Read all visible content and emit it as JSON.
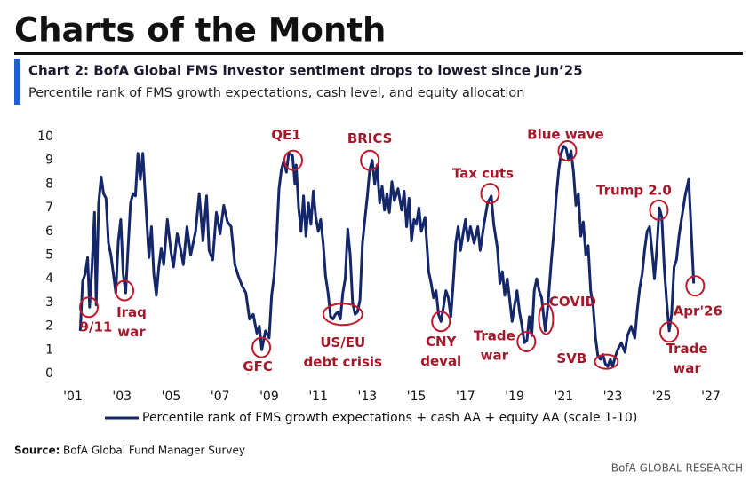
{
  "header": {
    "title": "Charts of the Month"
  },
  "chart_data": {
    "type": "line",
    "title": "Chart 2: BofA Global FMS investor sentiment drops to lowest since Jun’25",
    "subtitle": "Percentile rank of FMS growth expectations, cash level, and equity allocation",
    "x": [
      2001.3,
      2001.4,
      2001.5,
      2001.6,
      2001.68,
      2001.78,
      2001.88,
      2001.95,
      2002.05,
      2002.15,
      2002.25,
      2002.35,
      2002.45,
      2002.55,
      2002.65,
      2002.75,
      2002.85,
      2002.95,
      2003.05,
      2003.15,
      2003.25,
      2003.35,
      2003.45,
      2003.55,
      2003.65,
      2003.75,
      2003.85,
      2003.95,
      2004.1,
      2004.2,
      2004.3,
      2004.4,
      2004.5,
      2004.6,
      2004.7,
      2004.85,
      2005.0,
      2005.1,
      2005.25,
      2005.4,
      2005.5,
      2005.65,
      2005.8,
      2006.0,
      2006.15,
      2006.3,
      2006.45,
      2006.55,
      2006.7,
      2006.85,
      2007.0,
      2007.15,
      2007.3,
      2007.45,
      2007.6,
      2007.75,
      2007.9,
      2008.05,
      2008.2,
      2008.35,
      2008.5,
      2008.6,
      2008.7,
      2008.85,
      2009.0,
      2009.1,
      2009.2,
      2009.3,
      2009.4,
      2009.5,
      2009.6,
      2009.7,
      2009.8,
      2009.95,
      2010.05,
      2010.1,
      2010.2,
      2010.3,
      2010.4,
      2010.5,
      2010.6,
      2010.7,
      2010.8,
      2010.9,
      2011.0,
      2011.1,
      2011.2,
      2011.3,
      2011.4,
      2011.5,
      2011.6,
      2011.7,
      2011.8,
      2011.9,
      2012.0,
      2012.1,
      2012.2,
      2012.3,
      2012.4,
      2012.5,
      2012.6,
      2012.7,
      2012.8,
      2012.9,
      2013.0,
      2013.1,
      2013.2,
      2013.3,
      2013.4,
      2013.5,
      2013.6,
      2013.7,
      2013.8,
      2013.9,
      2014.0,
      2014.1,
      2014.25,
      2014.4,
      2014.5,
      2014.6,
      2014.7,
      2014.8,
      2014.9,
      2015.0,
      2015.1,
      2015.2,
      2015.35,
      2015.5,
      2015.6,
      2015.7,
      2015.8,
      2015.9,
      2016.0,
      2016.1,
      2016.2,
      2016.3,
      2016.4,
      2016.5,
      2016.6,
      2016.7,
      2016.8,
      2016.9,
      2017.0,
      2017.1,
      2017.2,
      2017.35,
      2017.5,
      2017.6,
      2017.75,
      2017.9,
      2018.05,
      2018.15,
      2018.3,
      2018.4,
      2018.5,
      2018.6,
      2018.7,
      2018.8,
      2018.9,
      2019.0,
      2019.1,
      2019.2,
      2019.3,
      2019.4,
      2019.5,
      2019.6,
      2019.7,
      2019.8,
      2019.9,
      2020.0,
      2020.1,
      2020.25,
      2020.35,
      2020.5,
      2020.6,
      2020.7,
      2020.8,
      2020.9,
      2021.0,
      2021.1,
      2021.2,
      2021.3,
      2021.4,
      2021.5,
      2021.6,
      2021.7,
      2021.8,
      2021.9,
      2022.0,
      2022.1,
      2022.2,
      2022.3,
      2022.4,
      2022.5,
      2022.6,
      2022.7,
      2022.8,
      2022.9,
      2023.0,
      2023.1,
      2023.2,
      2023.35,
      2023.5,
      2023.6,
      2023.75,
      2023.9,
      2024.0,
      2024.1,
      2024.2,
      2024.3,
      2024.4,
      2024.5,
      2024.6,
      2024.7,
      2024.8,
      2024.9,
      2025.0,
      2025.1,
      2025.2,
      2025.3,
      2025.4,
      2025.5,
      2025.6,
      2025.7,
      2025.8,
      2025.95,
      2026.1,
      2026.2,
      2026.3
    ],
    "series": [
      {
        "name": "Percentile rank of FMS growth expectations + cash AA + equity AA (scale 1-10)",
        "color": "#14276b",
        "values": [
          1.8,
          3.9,
          4.2,
          4.9,
          2.8,
          4.5,
          6.8,
          2.9,
          7.2,
          8.3,
          7.6,
          7.4,
          5.5,
          5.0,
          4.2,
          3.4,
          5.6,
          6.5,
          4.2,
          3.4,
          5.3,
          7.2,
          7.6,
          7.5,
          9.3,
          8.2,
          9.3,
          7.5,
          4.9,
          6.2,
          4.2,
          3.3,
          4.5,
          5.3,
          4.6,
          6.5,
          5.1,
          4.5,
          5.9,
          5.2,
          4.6,
          6.2,
          5.0,
          6.0,
          7.6,
          5.6,
          7.5,
          5.2,
          4.8,
          6.8,
          5.9,
          7.1,
          6.4,
          6.2,
          4.6,
          4.1,
          3.7,
          3.4,
          2.3,
          2.5,
          1.7,
          2.0,
          1.0,
          1.8,
          1.5,
          3.3,
          4.1,
          5.6,
          7.8,
          8.6,
          9.0,
          8.5,
          9.3,
          9.2,
          8.0,
          8.8,
          7.0,
          6.0,
          7.5,
          5.8,
          7.2,
          6.3,
          7.7,
          6.6,
          6.0,
          6.5,
          5.5,
          4.1,
          3.4,
          2.4,
          2.3,
          2.5,
          2.6,
          2.3,
          3.4,
          4.0,
          6.1,
          5.0,
          3.0,
          2.5,
          2.6,
          3.1,
          5.5,
          6.5,
          7.5,
          8.6,
          9.0,
          8.0,
          8.8,
          7.2,
          7.9,
          6.9,
          7.6,
          6.8,
          8.1,
          7.3,
          7.8,
          6.9,
          7.7,
          6.2,
          7.4,
          5.6,
          6.5,
          6.3,
          7.0,
          6.0,
          6.6,
          4.3,
          3.8,
          3.2,
          3.5,
          2.5,
          2.2,
          2.8,
          3.5,
          3.2,
          2.4,
          3.8,
          5.5,
          6.2,
          5.2,
          5.9,
          6.5,
          5.6,
          6.2,
          5.5,
          6.2,
          5.2,
          6.3,
          7.2,
          7.5,
          6.3,
          5.3,
          3.8,
          4.3,
          3.3,
          4.0,
          3.1,
          2.2,
          2.9,
          3.5,
          2.6,
          2.0,
          1.3,
          1.4,
          2.4,
          1.6,
          3.5,
          4.0,
          3.5,
          3.2,
          1.8,
          2.8,
          4.8,
          6.0,
          7.5,
          8.6,
          9.3,
          9.6,
          9.5,
          9.0,
          9.4,
          8.5,
          7.1,
          7.6,
          5.8,
          6.4,
          5.0,
          5.4,
          3.5,
          2.9,
          1.5,
          0.7,
          0.6,
          0.8,
          0.4,
          0.3,
          0.6,
          0.3,
          0.7,
          1.0,
          1.3,
          0.9,
          1.6,
          2.0,
          1.5,
          2.7,
          3.6,
          4.2,
          5.2,
          6.0,
          6.2,
          5.2,
          4.0,
          5.3,
          7.0,
          6.6,
          4.5,
          3.0,
          1.8,
          2.5,
          4.5,
          4.8,
          5.8,
          6.5,
          7.5,
          8.2,
          6.0,
          3.8
        ]
      }
    ],
    "xlim": [
      2001,
      2027
    ],
    "ylim": [
      0,
      10
    ],
    "xticks": [
      {
        "value": 2001,
        "label": "'01"
      },
      {
        "value": 2003,
        "label": "'03"
      },
      {
        "value": 2005,
        "label": "'05"
      },
      {
        "value": 2007,
        "label": "'07"
      },
      {
        "value": 2009,
        "label": "'09"
      },
      {
        "value": 2011,
        "label": "'11"
      },
      {
        "value": 2013,
        "label": "'13"
      },
      {
        "value": 2015,
        "label": "'15"
      },
      {
        "value": 2017,
        "label": "'17"
      },
      {
        "value": 2019,
        "label": "'19"
      },
      {
        "value": 2021,
        "label": "'21"
      },
      {
        "value": 2023,
        "label": "'23"
      },
      {
        "value": 2025,
        "label": "'25"
      },
      {
        "value": 2027,
        "label": "'27"
      }
    ],
    "yticks": [
      0,
      1,
      2,
      3,
      4,
      5,
      6,
      7,
      8,
      9,
      10
    ],
    "grid": false,
    "legend": "bottom",
    "annotations": [
      {
        "lines": [
          "9/11"
        ],
        "x": 2001.65,
        "y": 2.8
      },
      {
        "lines": [
          "Iraq",
          "war"
        ],
        "x": 2003.1,
        "y": 3.5
      },
      {
        "lines": [
          "GFC"
        ],
        "x": 2008.68,
        "y": 1.1
      },
      {
        "lines": [
          "QE1"
        ],
        "x": 2009.98,
        "y": 9.0
      },
      {
        "lines": [
          "US/EU",
          "debt crisis"
        ],
        "x": 2012.0,
        "y": 2.5
      },
      {
        "lines": [
          "BRICS"
        ],
        "x": 2013.1,
        "y": 9.0
      },
      {
        "lines": [
          "CNY",
          "deval"
        ],
        "x": 2016.0,
        "y": 2.2
      },
      {
        "lines": [
          "Tax cuts"
        ],
        "x": 2018.0,
        "y": 7.6
      },
      {
        "lines": [
          "Trade",
          "war"
        ],
        "x": 2019.48,
        "y": 1.35
      },
      {
        "lines": [
          "COVID"
        ],
        "x": 2020.28,
        "y": 2.3
      },
      {
        "lines": [
          "Blue wave"
        ],
        "x": 2021.15,
        "y": 9.4
      },
      {
        "lines": [
          "SVB"
        ],
        "x": 2022.74,
        "y": 0.5
      },
      {
        "lines": [
          "Trump 2.0"
        ],
        "x": 2024.88,
        "y": 6.9
      },
      {
        "lines": [
          "Trade",
          "war"
        ],
        "x": 2025.3,
        "y": 1.75
      },
      {
        "lines": [
          "Apr'26"
        ],
        "x": 2026.36,
        "y": 3.7
      }
    ]
  },
  "footer": {
    "source_label": "Source:",
    "source": "BofA Global Fund Manager Survey",
    "brand": "BofA GLOBAL RESEARCH"
  }
}
